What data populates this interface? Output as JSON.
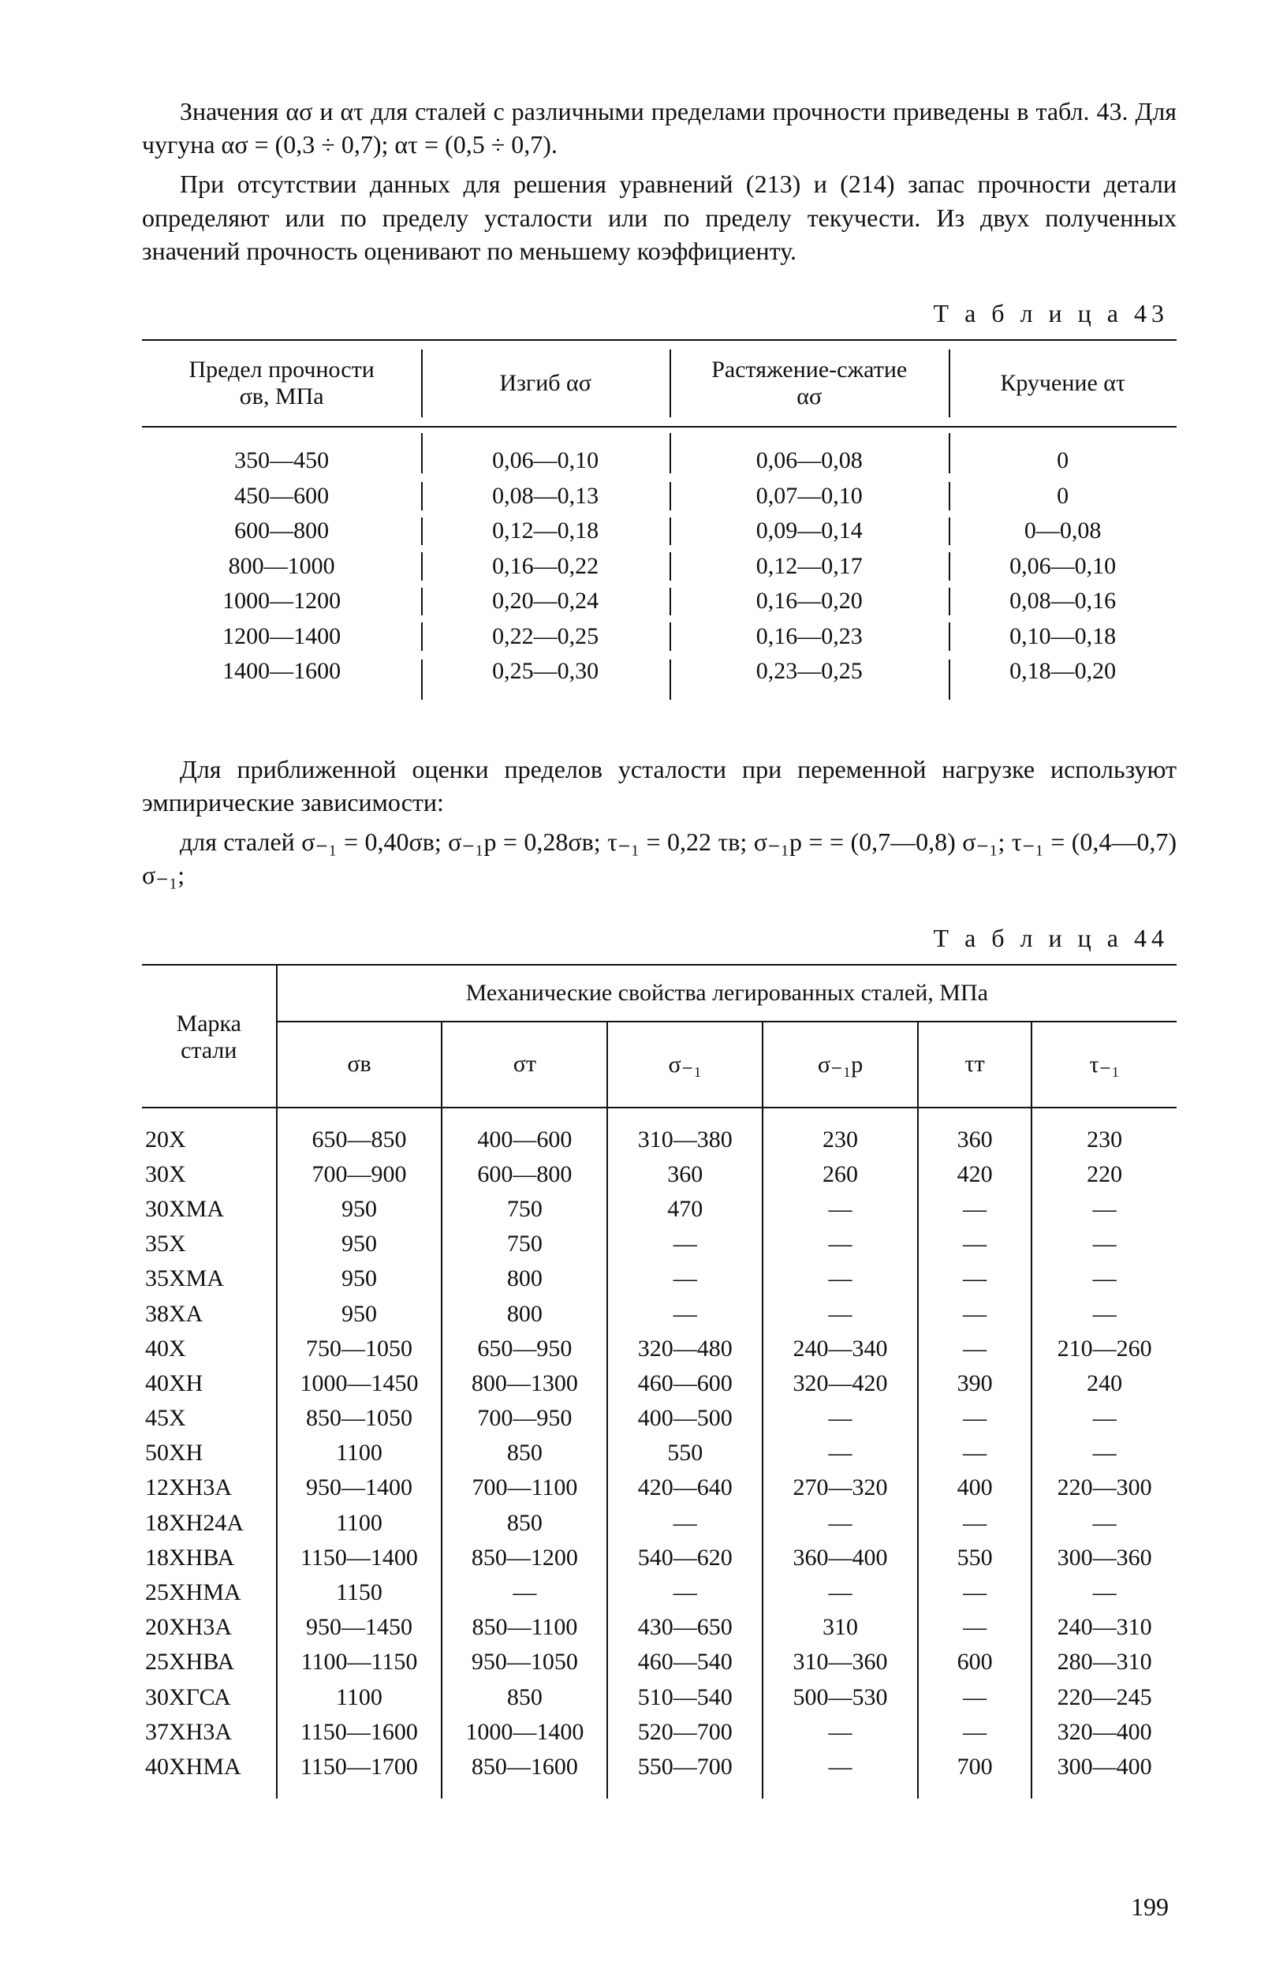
{
  "para1": "Значения ασ и ατ для сталей с различными пределами прочности приведены в табл. 43. Для чугуна ασ = (0,3 ÷ 0,7); ατ = (0,5 ÷ 0,7).",
  "para2": "При отсутствии данных для решения уравнений (213) и (214) запас прочности детали определяют или по пределу усталости или по пределу текучести. Из двух полученных значений прочность оценивают по меньшему коэффициенту.",
  "caption43": "Т а б л и ц а   43",
  "t43": {
    "headers": [
      "Предел прочности\nσв, МПа",
      "Изгиб ασ",
      "Растяжение-сжатие\nασ",
      "Кручение ατ"
    ],
    "rows": [
      [
        "350—450",
        "0,06—0,10",
        "0,06—0,08",
        "0"
      ],
      [
        "450—600",
        "0,08—0,13",
        "0,07—0,10",
        "0"
      ],
      [
        "600—800",
        "0,12—0,18",
        "0,09—0,14",
        "0—0,08"
      ],
      [
        "800—1000",
        "0,16—0,22",
        "0,12—0,17",
        "0,06—0,10"
      ],
      [
        "1000—1200",
        "0,20—0,24",
        "0,16—0,20",
        "0,08—0,16"
      ],
      [
        "1200—1400",
        "0,22—0,25",
        "0,16—0,23",
        "0,10—0,18"
      ],
      [
        "1400—1600",
        "0,25—0,30",
        "0,23—0,25",
        "0,18—0,20"
      ]
    ]
  },
  "mid1": "Для приближенной оценки пределов усталости при переменной нагрузке используют эмпирические зависимости:",
  "mid2": "для сталей σ₋₁ = 0,40σв;  σ₋₁p = 0,28σв;  τ₋₁ = 0,22 τв;  σ₋₁p = = (0,7—0,8) σ₋₁; τ₋₁ = (0,4—0,7) σ₋₁;",
  "caption44": "Т а б л и ц а   44",
  "t44": {
    "lefthead": "Марка\nстали",
    "tophead": "Механические свойства легированных сталей, МПа",
    "subheads": [
      "σв",
      "σт",
      "σ₋₁",
      "σ₋₁p",
      "τт",
      "τ₋₁"
    ],
    "rows": [
      [
        "20Х",
        "650—850",
        "400—600",
        "310—380",
        "230",
        "360",
        "230"
      ],
      [
        "30Х",
        "700—900",
        "600—800",
        "360",
        "260",
        "420",
        "220"
      ],
      [
        "30ХМА",
        "950",
        "750",
        "470",
        "—",
        "—",
        "—"
      ],
      [
        "35Х",
        "950",
        "750",
        "—",
        "—",
        "—",
        "—"
      ],
      [
        "35ХМА",
        "950",
        "800",
        "—",
        "—",
        "—",
        "—"
      ],
      [
        "38ХА",
        "950",
        "800",
        "—",
        "—",
        "—",
        "—"
      ],
      [
        "40Х",
        "750—1050",
        "650—950",
        "320—480",
        "240—340",
        "—",
        "210—260"
      ],
      [
        "40ХН",
        "1000—1450",
        "800—1300",
        "460—600",
        "320—420",
        "390",
        "240"
      ],
      [
        "45Х",
        "850—1050",
        "700—950",
        "400—500",
        "—",
        "—",
        "—"
      ],
      [
        "50ХН",
        "1100",
        "850",
        "550",
        "—",
        "—",
        "—"
      ],
      [
        "12ХН3А",
        "950—1400",
        "700—1100",
        "420—640",
        "270—320",
        "400",
        "220—300"
      ],
      [
        "18ХН24А",
        "1100",
        "850",
        "—",
        "—",
        "—",
        "—"
      ],
      [
        "18ХНВА",
        "1150—1400",
        "850—1200",
        "540—620",
        "360—400",
        "550",
        "300—360"
      ],
      [
        "25ХНМА",
        "1150",
        "—",
        "—",
        "—",
        "—",
        "—"
      ],
      [
        "20ХН3А",
        "950—1450",
        "850—1100",
        "430—650",
        "310",
        "—",
        "240—310"
      ],
      [
        "25ХНВА",
        "1100—1150",
        "950—1050",
        "460—540",
        "310—360",
        "600",
        "280—310"
      ],
      [
        "30ХГСА",
        "1100",
        "850",
        "510—540",
        "500—530",
        "—",
        "220—245"
      ],
      [
        "37ХН3А",
        "1150—1600",
        "1000—1400",
        "520—700",
        "—",
        "—",
        "320—400"
      ],
      [
        "40ХНМА",
        "1150—1700",
        "850—1600",
        "550—700",
        "—",
        "700",
        "300—400"
      ]
    ]
  },
  "pagenum": "199"
}
